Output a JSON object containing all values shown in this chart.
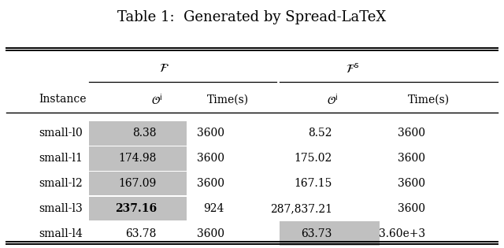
{
  "title": "Table 1:  Generated by Spread-LaTeX",
  "rows": [
    [
      "small-l0",
      "8.38",
      "3600",
      "8.52",
      "3600"
    ],
    [
      "small-l1",
      "174.98",
      "3600",
      "175.02",
      "3600"
    ],
    [
      "small-l2",
      "167.09",
      "3600",
      "167.15",
      "3600"
    ],
    [
      "small-l3",
      "237.16",
      "924",
      "287,837.21",
      "3600"
    ],
    [
      "small-l4",
      "63.78",
      "3600",
      "63.73",
      "3.60e+3"
    ]
  ],
  "highlight_cells": [
    {
      "row": 0,
      "col": 1,
      "color": "#c0c0c0"
    },
    {
      "row": 1,
      "col": 1,
      "color": "#c0c0c0"
    },
    {
      "row": 2,
      "col": 1,
      "color": "#c0c0c0"
    },
    {
      "row": 3,
      "col": 1,
      "color": "#c0c0c0"
    },
    {
      "row": 4,
      "col": 3,
      "color": "#c0c0c0"
    }
  ],
  "bold_cells": [
    {
      "row": 3,
      "col": 1
    }
  ],
  "background_color": "#ffffff",
  "title_fontsize": 13,
  "data_fontsize": 10,
  "header_fontsize": 10
}
